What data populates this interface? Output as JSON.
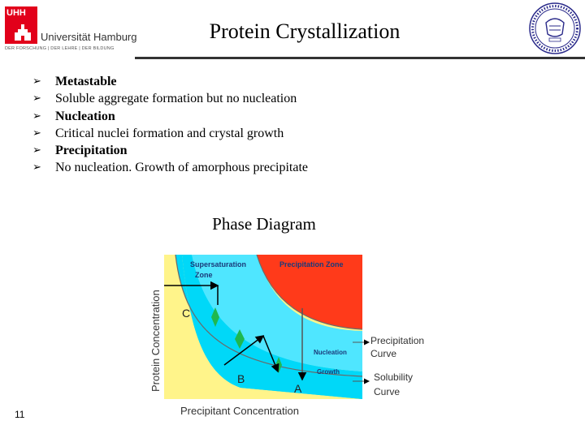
{
  "header": {
    "logo_mark": "UHH",
    "university": "Universität Hamburg",
    "motto": "DER FORSCHUNG | DER LEHRE | DER BILDUNG",
    "title": "Protein Crystallization"
  },
  "bullets": [
    {
      "text": "Metastable",
      "bold": true
    },
    {
      "text": "Soluble aggregate formation but no nucleation",
      "bold": false
    },
    {
      "text": "Nucleation",
      "bold": true
    },
    {
      "text": "Critical nuclei formation and crystal growth",
      "bold": false
    },
    {
      "text": "Precipitation",
      "bold": true
    },
    {
      "text": "No nucleation. Growth of amorphous precipitate",
      "bold": false
    }
  ],
  "bullet_symbol": "➢",
  "diagram": {
    "title": "Phase Diagram",
    "y_axis": "Protein Concentration",
    "x_axis": "Precipitant Concentration",
    "zones": {
      "supersaturation_line1": "Supersaturation",
      "supersaturation_line2": "Zone",
      "precipitation": "Precipitation Zone",
      "nucleation": "Nucleation",
      "growth": "Growth"
    },
    "points": {
      "a": "A",
      "b": "B",
      "c": "C"
    },
    "curves": {
      "precip_line1": "Precipitation",
      "precip_line2": "Curve",
      "solub_line1": "Solubility",
      "solub_line2": "Curve"
    },
    "colors": {
      "undersaturated": "#fff48a",
      "metastable": "#00d8f8",
      "nucleation": "#4fe6ff",
      "precipitation": "#ff3a1a",
      "arrows": "#000000",
      "diamonds": "#1fb84f"
    }
  },
  "page_number": "11"
}
